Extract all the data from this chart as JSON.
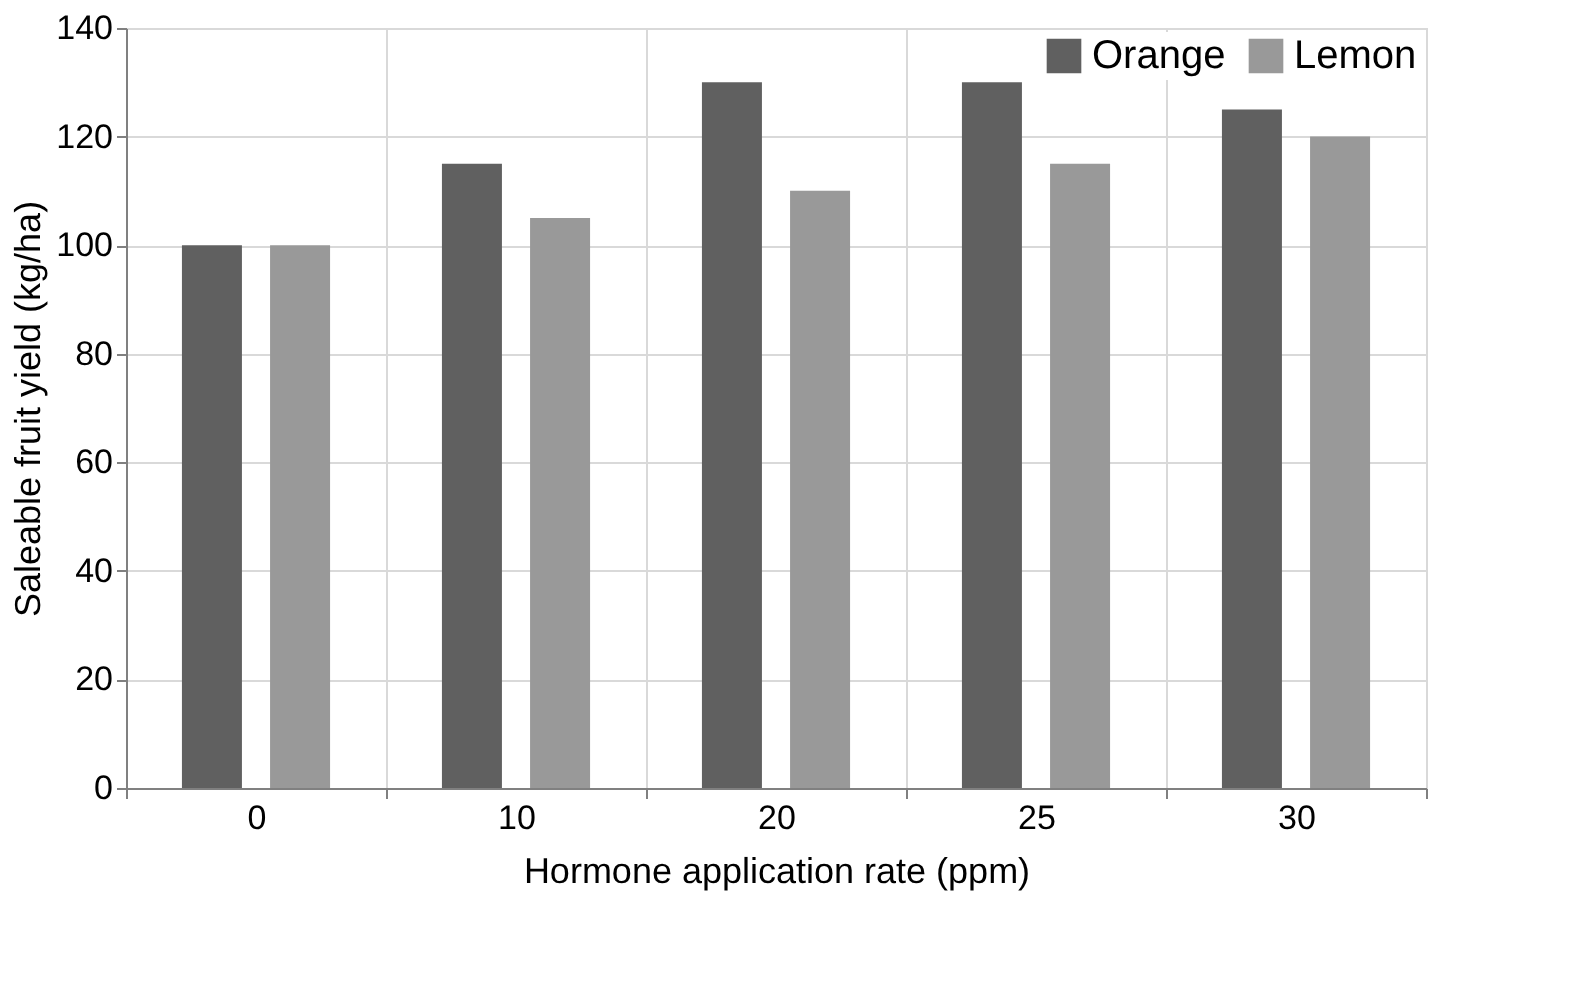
{
  "chart_data": {
    "type": "bar",
    "xlabel": "Hormone application rate (ppm)",
    "ylabel": "Saleable fruit yield (kg/ha)",
    "categories": [
      "0",
      "10",
      "20",
      "25",
      "30"
    ],
    "series": [
      {
        "name": "Orange",
        "color": "#606060",
        "values": [
          100,
          115,
          130,
          130,
          125
        ]
      },
      {
        "name": "Lemon",
        "color": "#999999",
        "values": [
          100,
          105,
          110,
          115,
          120
        ]
      }
    ],
    "ylim": [
      0,
      140
    ],
    "yticks": [
      0,
      20,
      40,
      60,
      80,
      100,
      120,
      140
    ],
    "grid": true,
    "legend": "top right"
  }
}
